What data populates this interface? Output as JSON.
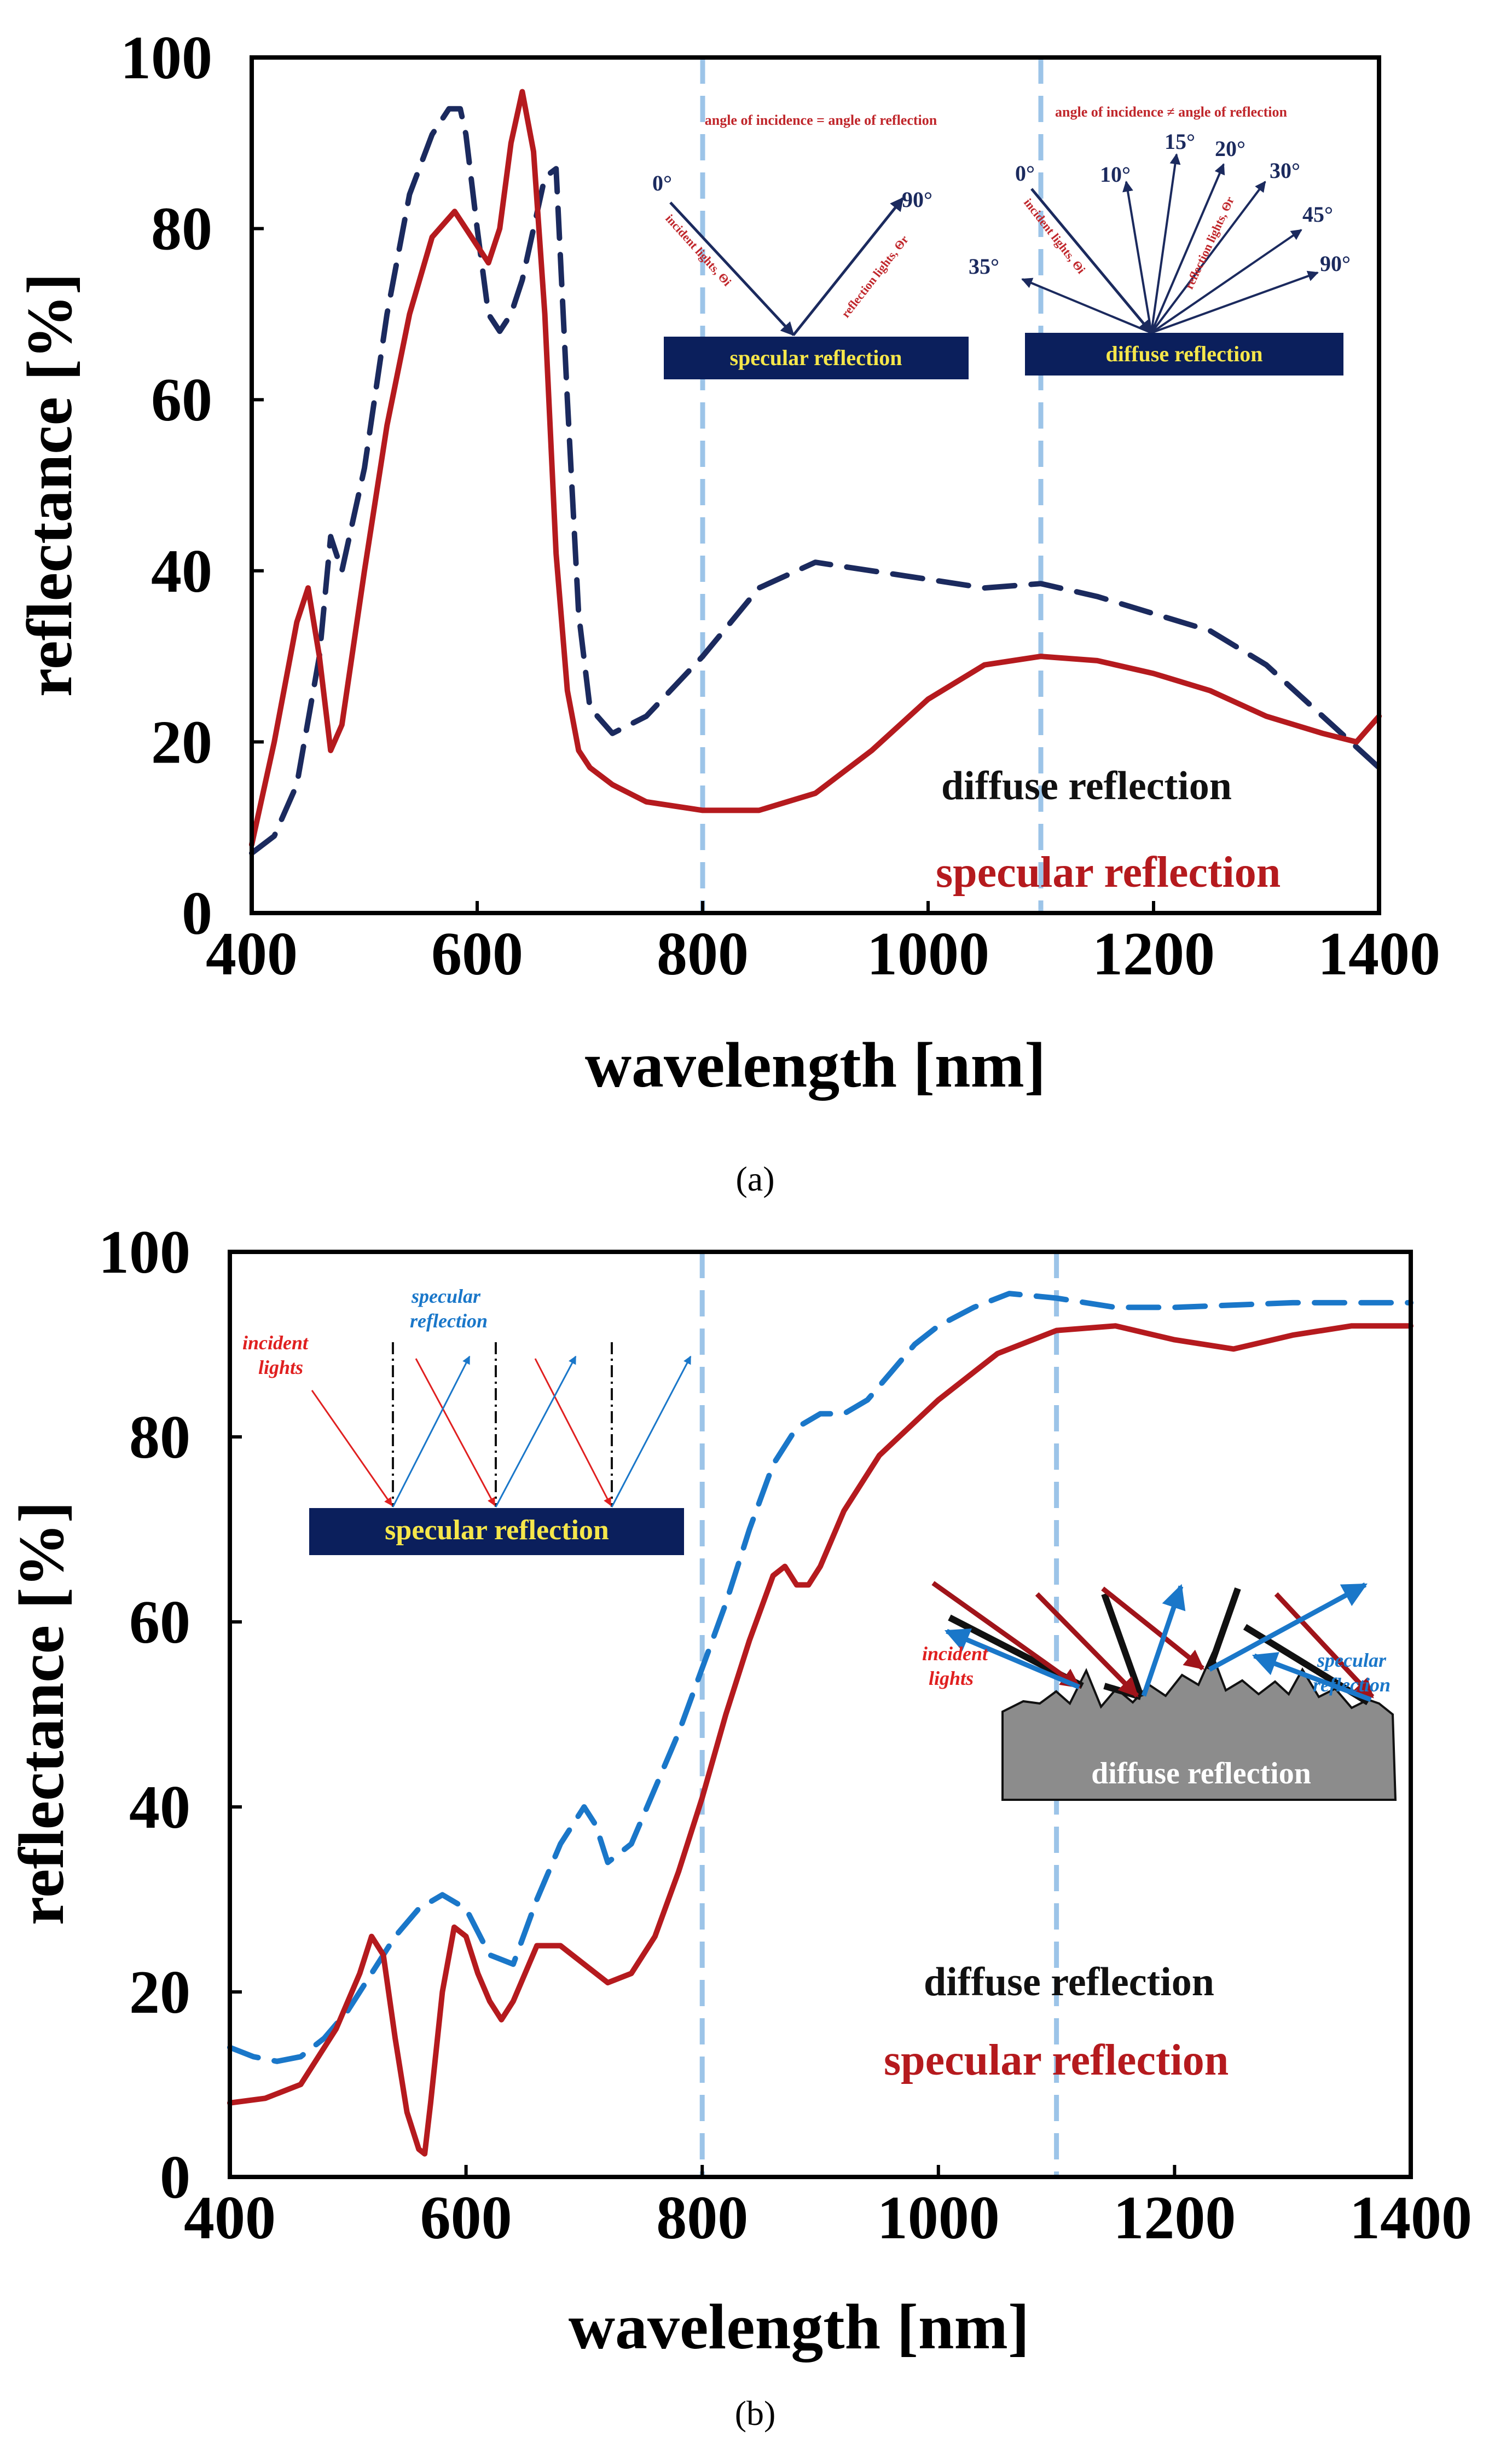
{
  "chart_data": [
    {
      "panel": "a",
      "type": "line",
      "caption": "(a)",
      "xlabel": "wavelength [nm]",
      "ylabel": "reflectance [%]",
      "xlim": [
        400,
        1400
      ],
      "ylim": [
        0,
        100
      ],
      "xticks": [
        400,
        600,
        800,
        1000,
        1200,
        1400
      ],
      "yticks": [
        0,
        20,
        40,
        60,
        80,
        100
      ],
      "vlines": [
        800,
        1100
      ],
      "legend": [
        "diffuse reflection",
        "specular reflection"
      ],
      "series": [
        {
          "name": "diffuse reflection",
          "style": "dashed",
          "color": "#1b2a5e",
          "x": [
            400,
            420,
            440,
            460,
            470,
            480,
            500,
            520,
            540,
            560,
            575,
            585,
            590,
            600,
            610,
            620,
            630,
            640,
            650,
            660,
            670,
            680,
            690,
            700,
            720,
            750,
            800,
            850,
            900,
            950,
            1000,
            1050,
            1100,
            1150,
            1200,
            1250,
            1300,
            1350,
            1400
          ],
          "y": [
            7,
            9,
            15,
            30,
            44,
            40,
            52,
            70,
            84,
            91,
            94,
            94,
            91,
            80,
            70,
            68,
            70,
            74,
            80,
            86,
            87,
            60,
            35,
            24,
            21,
            23,
            30,
            38,
            41,
            40,
            39,
            38,
            38.5,
            37,
            35,
            33,
            29,
            23,
            17
          ]
        },
        {
          "name": "specular reflection",
          "style": "solid",
          "color": "#b51a1e",
          "x": [
            400,
            420,
            440,
            450,
            460,
            470,
            480,
            500,
            520,
            540,
            560,
            580,
            600,
            610,
            620,
            630,
            640,
            650,
            660,
            670,
            680,
            690,
            700,
            720,
            750,
            800,
            850,
            900,
            950,
            1000,
            1050,
            1100,
            1150,
            1200,
            1250,
            1300,
            1350,
            1380,
            1400
          ],
          "y": [
            8,
            20,
            34,
            38,
            30,
            19,
            22,
            40,
            57,
            70,
            79,
            82,
            78,
            76,
            80,
            90,
            96,
            89,
            70,
            42,
            26,
            19,
            17,
            15,
            13,
            12,
            12,
            14,
            19,
            25,
            29,
            30,
            29.5,
            28,
            26,
            23,
            21,
            20,
            23
          ]
        }
      ],
      "insets": {
        "specular": {
          "title": "angle of incidence = angle of reflection",
          "angle_left": "0°",
          "angle_right": "90°",
          "incident_label": "incident lights, Θi",
          "reflection_label": "reflection lights, Θr",
          "surface_label": "specular reflection"
        },
        "diffuse": {
          "title": "angle of incidence ≠ angle of reflection",
          "angles": [
            "0°",
            "10°",
            "15°",
            "20°",
            "30°",
            "45°",
            "90°",
            "35°"
          ],
          "incident_label": "incident lights, Θi",
          "reflection_label": "reflection lights, Θr",
          "surface_label": "diffuse reflection"
        }
      }
    },
    {
      "panel": "b",
      "type": "line",
      "caption": "(b)",
      "xlabel": "wavelength [nm]",
      "ylabel": "reflectance [%]",
      "xlim": [
        400,
        1400
      ],
      "ylim": [
        0,
        100
      ],
      "xticks": [
        400,
        600,
        800,
        1000,
        1200,
        1400
      ],
      "yticks": [
        0,
        20,
        40,
        60,
        80,
        100
      ],
      "vlines": [
        800,
        1100
      ],
      "legend": [
        "diffuse reflection",
        "specular reflection"
      ],
      "series": [
        {
          "name": "diffuse reflection",
          "style": "dashed",
          "color": "#1a77c9",
          "x": [
            400,
            420,
            440,
            460,
            480,
            500,
            520,
            540,
            560,
            580,
            600,
            620,
            640,
            660,
            680,
            700,
            710,
            720,
            740,
            760,
            780,
            800,
            820,
            840,
            860,
            880,
            900,
            920,
            940,
            960,
            980,
            1000,
            1030,
            1060,
            1100,
            1150,
            1200,
            1300,
            1400
          ],
          "y": [
            14,
            13,
            12.5,
            13,
            15,
            18,
            22,
            26,
            29,
            30.5,
            29,
            24,
            23,
            30,
            36,
            40,
            38,
            34,
            36,
            42,
            48,
            55,
            62,
            70,
            77,
            81,
            82.5,
            82.5,
            84,
            87,
            90,
            92,
            94,
            95.5,
            95,
            94,
            94,
            94.5,
            94.5
          ]
        },
        {
          "name": "specular reflection",
          "style": "solid",
          "color": "#b51a1e",
          "x": [
            400,
            430,
            460,
            490,
            510,
            520,
            530,
            540,
            550,
            560,
            565,
            570,
            580,
            590,
            600,
            610,
            620,
            630,
            640,
            660,
            680,
            700,
            720,
            740,
            760,
            780,
            800,
            820,
            840,
            860,
            870,
            880,
            890,
            900,
            920,
            950,
            1000,
            1050,
            1100,
            1150,
            1200,
            1250,
            1300,
            1350,
            1400
          ],
          "y": [
            8,
            8.5,
            10,
            16,
            22,
            26,
            24,
            15,
            7,
            3,
            2.5,
            8,
            20,
            27,
            26,
            22,
            19,
            17,
            19,
            25,
            25,
            23,
            21,
            22,
            26,
            33,
            41,
            50,
            58,
            65,
            66,
            64,
            64,
            66,
            72,
            78,
            84,
            89,
            91.5,
            92,
            90.5,
            89.5,
            91,
            92,
            92
          ]
        }
      ],
      "insets": {
        "specular": {
          "incident_label_1": "incident",
          "incident_label_2": "lights",
          "reflection_label_1": "specular",
          "reflection_label_2": "reflection",
          "surface_label": "specular reflection"
        },
        "diffuse": {
          "incident_label_1": "incident",
          "incident_label_2": "lights",
          "reflection_label_1": "specular",
          "reflection_label_2": "reflection",
          "surface_label": "diffuse reflection"
        }
      }
    }
  ]
}
